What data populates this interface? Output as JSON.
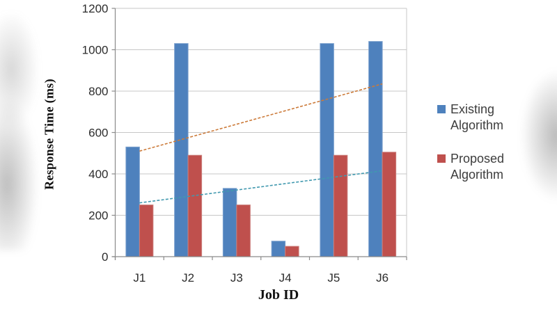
{
  "chart_data": {
    "type": "bar",
    "title": "",
    "xlabel": "Job ID",
    "ylabel": "Response Time (ms)",
    "categories": [
      "J1",
      "J2",
      "J3",
      "J4",
      "J5",
      "J6"
    ],
    "series": [
      {
        "name": "Existing Algorithm",
        "color": "#4E81BD",
        "border": "#7CA1CE",
        "values": [
          530,
          1030,
          330,
          75,
          1030,
          1040
        ]
      },
      {
        "name": "Proposed Algorithm",
        "color": "#BF504D",
        "border": "#CC7F7C",
        "values": [
          250,
          490,
          250,
          50,
          490,
          505
        ]
      }
    ],
    "trendlines": [
      {
        "series": "Existing Algorithm",
        "type": "linear",
        "style": "dashed",
        "color": "#CC7A39",
        "start_value": 510,
        "end_value": 835
      },
      {
        "series": "Proposed Algorithm",
        "type": "linear",
        "style": "dashed",
        "color": "#4199AF",
        "start_value": 260,
        "end_value": 415
      }
    ],
    "ylim": [
      0,
      1200
    ],
    "ytick_step": 200,
    "yticks": [
      "0",
      "200",
      "400",
      "600",
      "800",
      "1000",
      "1200"
    ],
    "grid": "horizontal-only",
    "legend_position": "right",
    "gridline_color": "#C7C7C7",
    "axis_color": "#8A8A8A"
  },
  "legend": {
    "items": [
      {
        "label": "Existing Algorithm",
        "color": "#4E81BD"
      },
      {
        "label": "Proposed Algorithm",
        "color": "#BF504D"
      }
    ]
  }
}
